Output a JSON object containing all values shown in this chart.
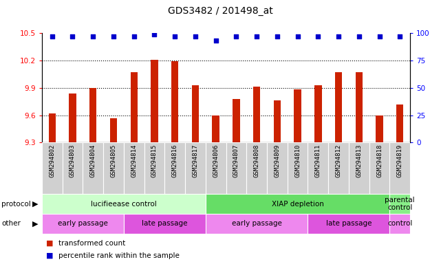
{
  "title": "GDS3482 / 201498_at",
  "samples": [
    "GSM294802",
    "GSM294803",
    "GSM294804",
    "GSM294805",
    "GSM294814",
    "GSM294815",
    "GSM294816",
    "GSM294817",
    "GSM294806",
    "GSM294807",
    "GSM294808",
    "GSM294809",
    "GSM294810",
    "GSM294811",
    "GSM294812",
    "GSM294813",
    "GSM294818",
    "GSM294819"
  ],
  "bar_values": [
    9.62,
    9.84,
    9.9,
    9.57,
    10.07,
    10.21,
    10.19,
    9.93,
    9.6,
    9.78,
    9.91,
    9.76,
    9.88,
    9.93,
    10.07,
    10.07,
    9.6,
    9.72
  ],
  "dot_values": [
    97,
    97,
    97,
    97,
    97,
    99,
    97,
    97,
    93,
    97,
    97,
    97,
    97,
    97,
    97,
    97,
    97,
    97
  ],
  "bar_color": "#cc2200",
  "dot_color": "#0000cc",
  "ylim_left": [
    9.3,
    10.5
  ],
  "ylim_right": [
    0,
    100
  ],
  "yticks_left": [
    9.3,
    9.6,
    9.9,
    10.2,
    10.5
  ],
  "yticks_right": [
    0,
    25,
    50,
    75,
    100
  ],
  "grid_values": [
    9.6,
    9.9,
    10.2
  ],
  "protocol_groups": [
    {
      "label": "lucifieease control",
      "start": 0,
      "end": 8,
      "color": "#ccffcc"
    },
    {
      "label": "XIAP depletion",
      "start": 8,
      "end": 17,
      "color": "#66dd66"
    },
    {
      "label": "parental\ncontrol",
      "start": 17,
      "end": 18,
      "color": "#88ee88"
    }
  ],
  "other_groups": [
    {
      "label": "early passage",
      "start": 0,
      "end": 4,
      "color": "#ee88ee"
    },
    {
      "label": "late passage",
      "start": 4,
      "end": 8,
      "color": "#dd55dd"
    },
    {
      "label": "early passage",
      "start": 8,
      "end": 13,
      "color": "#ee88ee"
    },
    {
      "label": "late passage",
      "start": 13,
      "end": 17,
      "color": "#dd55dd"
    },
    {
      "label": "control",
      "start": 17,
      "end": 18,
      "color": "#ee88ee"
    }
  ],
  "background_color": "#ffffff",
  "plot_bg_color": "#ffffff",
  "label_bg_color": "#d0d0d0"
}
